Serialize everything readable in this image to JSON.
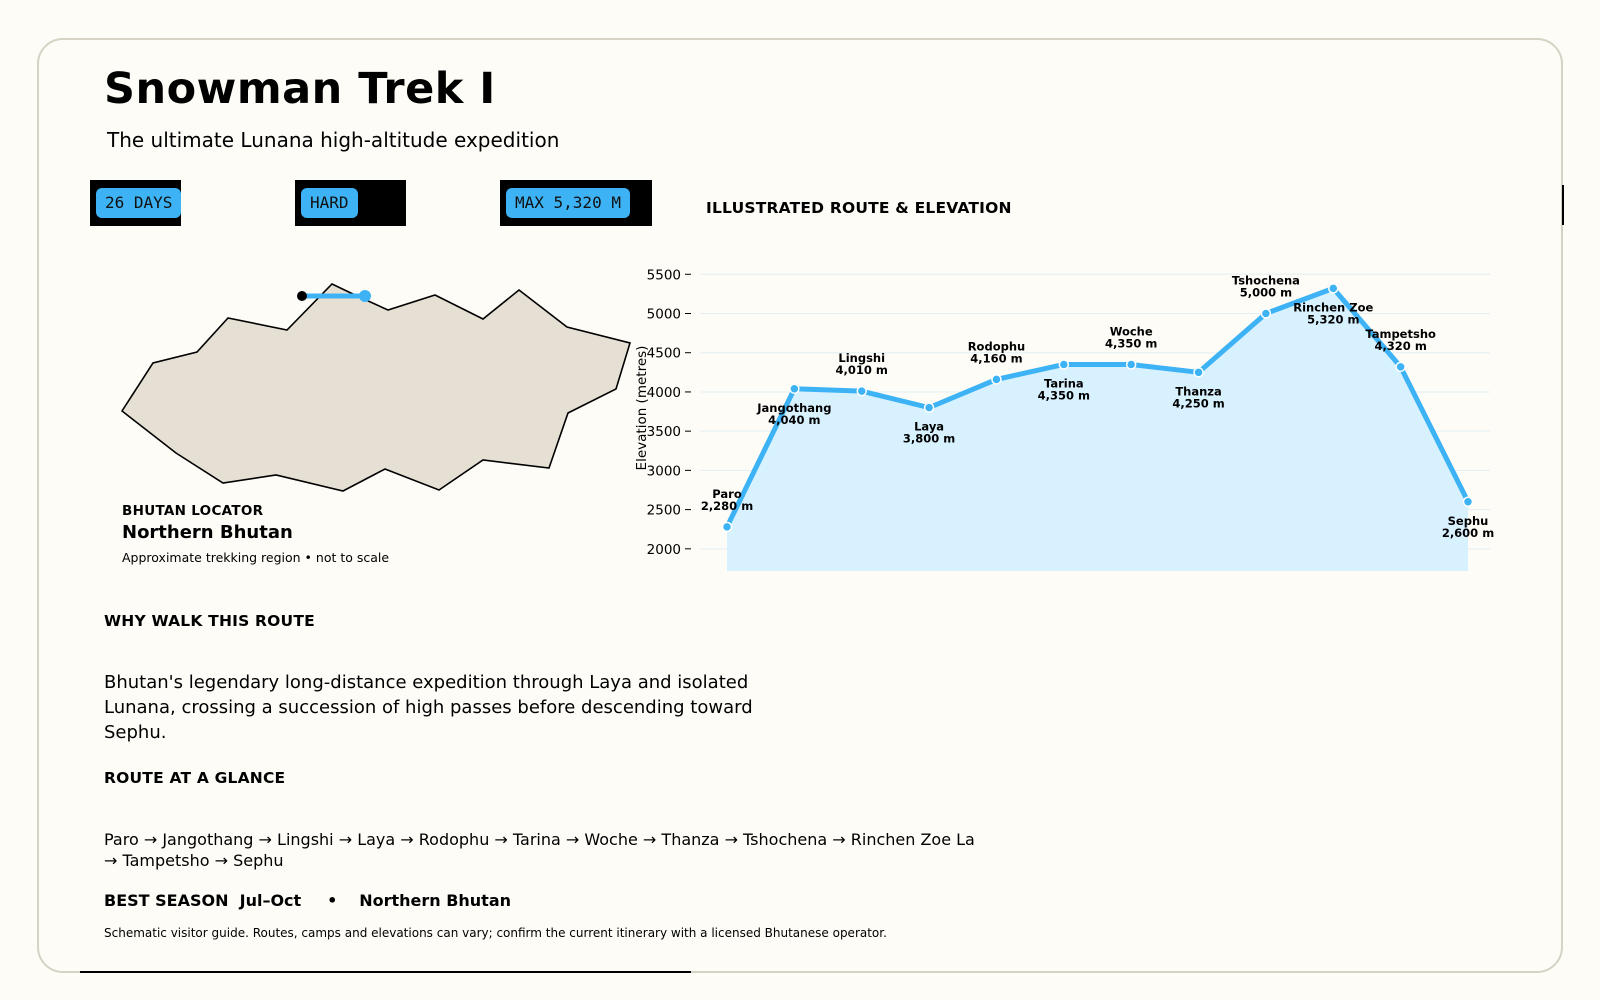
{
  "header": {
    "title": "Snowman Trek I",
    "subtitle": "The ultimate Lunana high-altitude expedition"
  },
  "badges": [
    {
      "label": "26 DAYS"
    },
    {
      "label": "HARD"
    },
    {
      "label": "MAX 5,320 M"
    }
  ],
  "locator": {
    "kicker": "BHUTAN LOCATOR",
    "region": "Northern Bhutan",
    "note": "Approximate trekking region • not to scale"
  },
  "chart_section": {
    "heading": "ILLUSTRATED ROUTE & ELEVATION"
  },
  "chart_data": {
    "type": "area",
    "ylabel": "Elevation (metres)",
    "ylim": [
      1730,
      5580
    ],
    "yticks": [
      2000,
      2500,
      3000,
      3500,
      4000,
      4500,
      5000,
      5500
    ],
    "grid": true,
    "series": [
      {
        "points": [
          {
            "name": "Paro",
            "label": "2,280 m",
            "value": 2280
          },
          {
            "name": "Jangothang",
            "label": "4,040 m",
            "value": 4040
          },
          {
            "name": "Lingshi",
            "label": "4,010 m",
            "value": 4010
          },
          {
            "name": "Laya",
            "label": "3,800 m",
            "value": 3800
          },
          {
            "name": "Rodophu",
            "label": "4,160 m",
            "value": 4160
          },
          {
            "name": "Tarina",
            "label": "4,350 m",
            "value": 4350
          },
          {
            "name": "Woche",
            "label": "4,350 m",
            "value": 4350
          },
          {
            "name": "Thanza",
            "label": "4,250 m",
            "value": 4250
          },
          {
            "name": "Tshochena",
            "label": "5,000 m",
            "value": 5000
          },
          {
            "name": "Rinchen Zoe La",
            "label": "5,320 m",
            "value": 5320
          },
          {
            "name": "Tampetsho",
            "label": "4,320 m",
            "value": 4320
          },
          {
            "name": "Sephu",
            "label": "2,600 m",
            "value": 2600
          }
        ]
      }
    ],
    "label_positions": [
      "above",
      "below",
      "above",
      "below",
      "above",
      "below",
      "above",
      "below",
      "above",
      "below",
      "above",
      "below"
    ],
    "display_names": [
      "Paro",
      "Jangothang",
      "Lingshi",
      "Laya",
      "Rodophu",
      "Tarina",
      "Woche",
      "Thanza",
      "Tshochena",
      "Rinchen Zoe",
      "Tampetsho",
      "Sephu"
    ]
  },
  "why": {
    "heading": "WHY WALK THIS ROUTE",
    "body": "Bhutan's legendary long-distance expedition through Laya and isolated Lunana, crossing a succession of high passes before descending toward Sephu."
  },
  "route": {
    "heading": "ROUTE AT A GLANCE",
    "text": "Paro → Jangothang → Lingshi → Laya → Rodophu → Tarina → Woche → Thanza → Tshochena → Rinchen Zoe La → Tampetsho → Sephu"
  },
  "season": {
    "label": "BEST SEASON",
    "value": "Jul–Oct",
    "separator": "•",
    "region": "Northern Bhutan"
  },
  "disclaimer": "Schematic visitor guide. Routes, camps and elevations can vary; confirm the current itinerary with a licensed Bhutanese operator.",
  "colors": {
    "accent": "#3db3f5",
    "area_fill": "#d7f1ff",
    "map_fill": "#e6e0d4",
    "card_border": "#d6d3c4"
  }
}
